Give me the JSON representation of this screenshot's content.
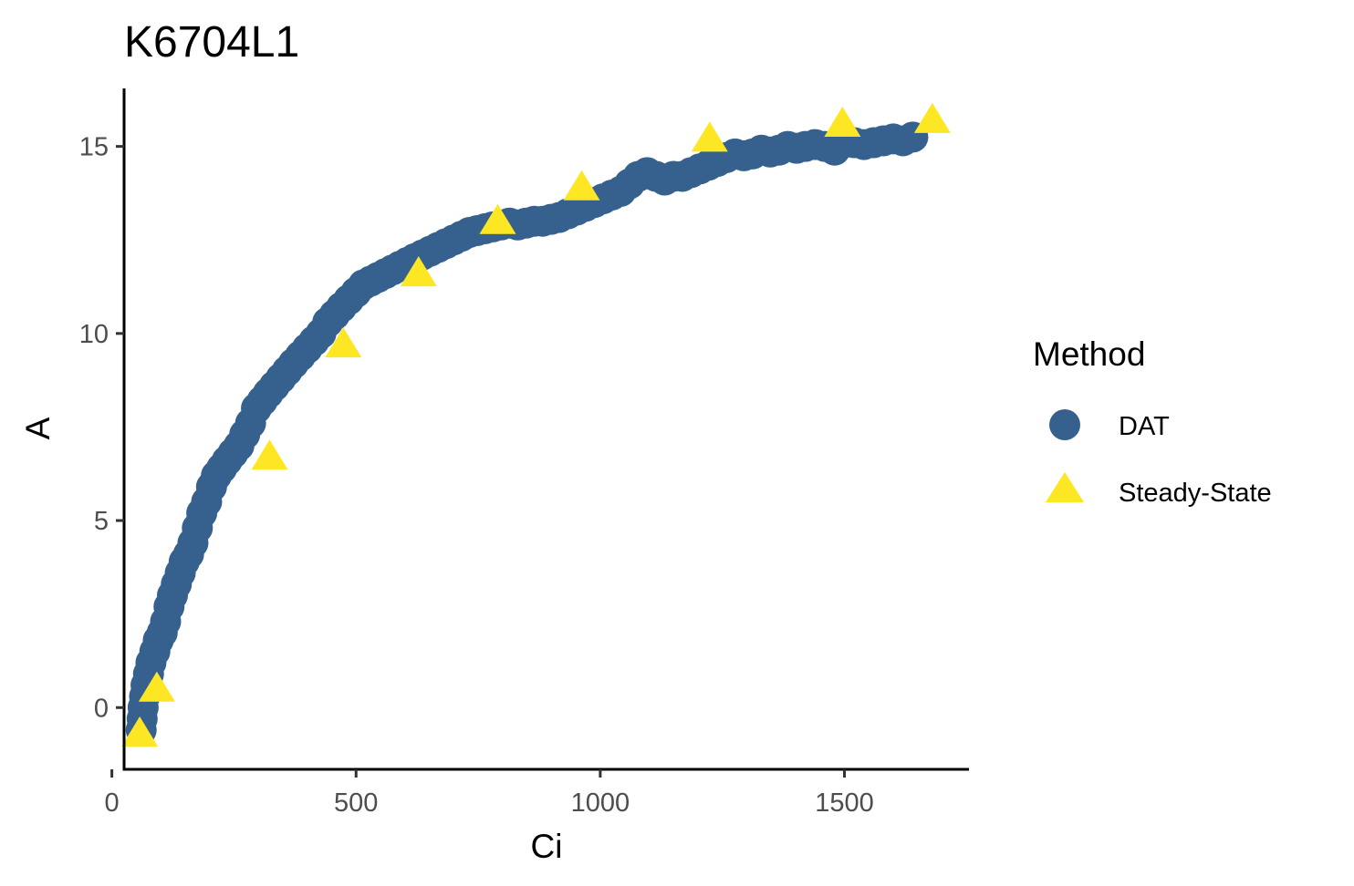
{
  "chart_data": {
    "type": "scatter",
    "title": "K6704L1",
    "xlabel": "Ci",
    "ylabel": "A",
    "xlim": [
      25,
      1755
    ],
    "ylim": [
      -1.65,
      16.55
    ],
    "x_ticks": [
      0,
      500,
      1000,
      1500
    ],
    "y_ticks": [
      0,
      5,
      10,
      15
    ],
    "x_tick_labels": [
      "0",
      "500",
      "1000",
      "1500"
    ],
    "y_tick_labels": [
      "0",
      "5",
      "10",
      "15"
    ],
    "grid": false,
    "legend": {
      "title": "Method",
      "position": "right",
      "entries": [
        {
          "label": "DAT",
          "shape": "circle",
          "color": "#36608d"
        },
        {
          "label": "Steady-State",
          "shape": "triangle",
          "color": "#fde725"
        }
      ]
    },
    "series": [
      {
        "name": "DAT",
        "shape": "circle",
        "color": "#36608d",
        "points": [
          [
            60,
            -0.6
          ],
          [
            62,
            -0.3
          ],
          [
            64,
            0
          ],
          [
            67,
            0.3
          ],
          [
            70,
            0.6
          ],
          [
            75,
            0.9
          ],
          [
            80,
            1.2
          ],
          [
            88,
            1.5
          ],
          [
            95,
            1.8
          ],
          [
            103,
            2.0
          ],
          [
            110,
            2.3
          ],
          [
            117,
            2.7
          ],
          [
            124,
            3.0
          ],
          [
            132,
            3.3
          ],
          [
            140,
            3.6
          ],
          [
            148,
            3.9
          ],
          [
            157,
            4.1
          ],
          [
            166,
            4.4
          ],
          [
            175,
            4.8
          ],
          [
            184,
            5.2
          ],
          [
            194,
            5.5
          ],
          [
            204,
            5.9
          ],
          [
            214,
            6.2
          ],
          [
            225,
            6.4
          ],
          [
            236,
            6.6
          ],
          [
            248,
            6.8
          ],
          [
            260,
            7.0
          ],
          [
            272,
            7.3
          ],
          [
            284,
            7.6
          ],
          [
            296,
            8.0
          ],
          [
            308,
            8.2
          ],
          [
            320,
            8.4
          ],
          [
            333,
            8.6
          ],
          [
            346,
            8.8
          ],
          [
            359,
            9.0
          ],
          [
            372,
            9.2
          ],
          [
            386,
            9.4
          ],
          [
            400,
            9.6
          ],
          [
            414,
            9.8
          ],
          [
            428,
            10.0
          ],
          [
            442,
            10.3
          ],
          [
            456,
            10.5
          ],
          [
            470,
            10.7
          ],
          [
            485,
            10.9
          ],
          [
            500,
            11.1
          ],
          [
            515,
            11.3
          ],
          [
            530,
            11.4
          ],
          [
            545,
            11.5
          ],
          [
            560,
            11.6
          ],
          [
            575,
            11.7
          ],
          [
            590,
            11.8
          ],
          [
            605,
            11.9
          ],
          [
            620,
            12.0
          ],
          [
            636,
            12.1
          ],
          [
            652,
            12.2
          ],
          [
            668,
            12.3
          ],
          [
            684,
            12.4
          ],
          [
            700,
            12.5
          ],
          [
            716,
            12.6
          ],
          [
            732,
            12.7
          ],
          [
            748,
            12.75
          ],
          [
            764,
            12.8
          ],
          [
            780,
            12.85
          ],
          [
            797,
            12.9
          ],
          [
            814,
            12.95
          ],
          [
            831,
            12.9
          ],
          [
            848,
            12.95
          ],
          [
            865,
            13.0
          ],
          [
            882,
            13.0
          ],
          [
            899,
            13.05
          ],
          [
            916,
            13.1
          ],
          [
            934,
            13.2
          ],
          [
            952,
            13.3
          ],
          [
            970,
            13.4
          ],
          [
            988,
            13.5
          ],
          [
            1006,
            13.6
          ],
          [
            1024,
            13.7
          ],
          [
            1042,
            13.8
          ],
          [
            1060,
            14.0
          ],
          [
            1078,
            14.2
          ],
          [
            1096,
            14.3
          ],
          [
            1114,
            14.2
          ],
          [
            1132,
            14.1
          ],
          [
            1150,
            14.2
          ],
          [
            1168,
            14.2
          ],
          [
            1186,
            14.3
          ],
          [
            1204,
            14.4
          ],
          [
            1222,
            14.5
          ],
          [
            1240,
            14.6
          ],
          [
            1258,
            14.7
          ],
          [
            1276,
            14.8
          ],
          [
            1294,
            14.75
          ],
          [
            1312,
            14.8
          ],
          [
            1330,
            14.9
          ],
          [
            1348,
            14.85
          ],
          [
            1366,
            14.9
          ],
          [
            1384,
            15.0
          ],
          [
            1402,
            14.95
          ],
          [
            1420,
            15.0
          ],
          [
            1440,
            15.05
          ],
          [
            1460,
            15.0
          ],
          [
            1480,
            14.9
          ],
          [
            1500,
            15.1
          ],
          [
            1520,
            15.1
          ],
          [
            1540,
            15.05
          ],
          [
            1560,
            15.1
          ],
          [
            1580,
            15.15
          ],
          [
            1600,
            15.2
          ],
          [
            1620,
            15.15
          ],
          [
            1640,
            15.25
          ]
        ]
      },
      {
        "name": "Steady-State",
        "shape": "triangle",
        "color": "#fde725",
        "points": [
          [
            57,
            -0.7
          ],
          [
            92,
            0.5
          ],
          [
            323,
            6.7
          ],
          [
            474,
            9.7
          ],
          [
            628,
            11.6
          ],
          [
            790,
            13.0
          ],
          [
            962,
            13.9
          ],
          [
            1224,
            15.2
          ],
          [
            1496,
            15.6
          ],
          [
            1680,
            15.7
          ]
        ]
      }
    ]
  }
}
